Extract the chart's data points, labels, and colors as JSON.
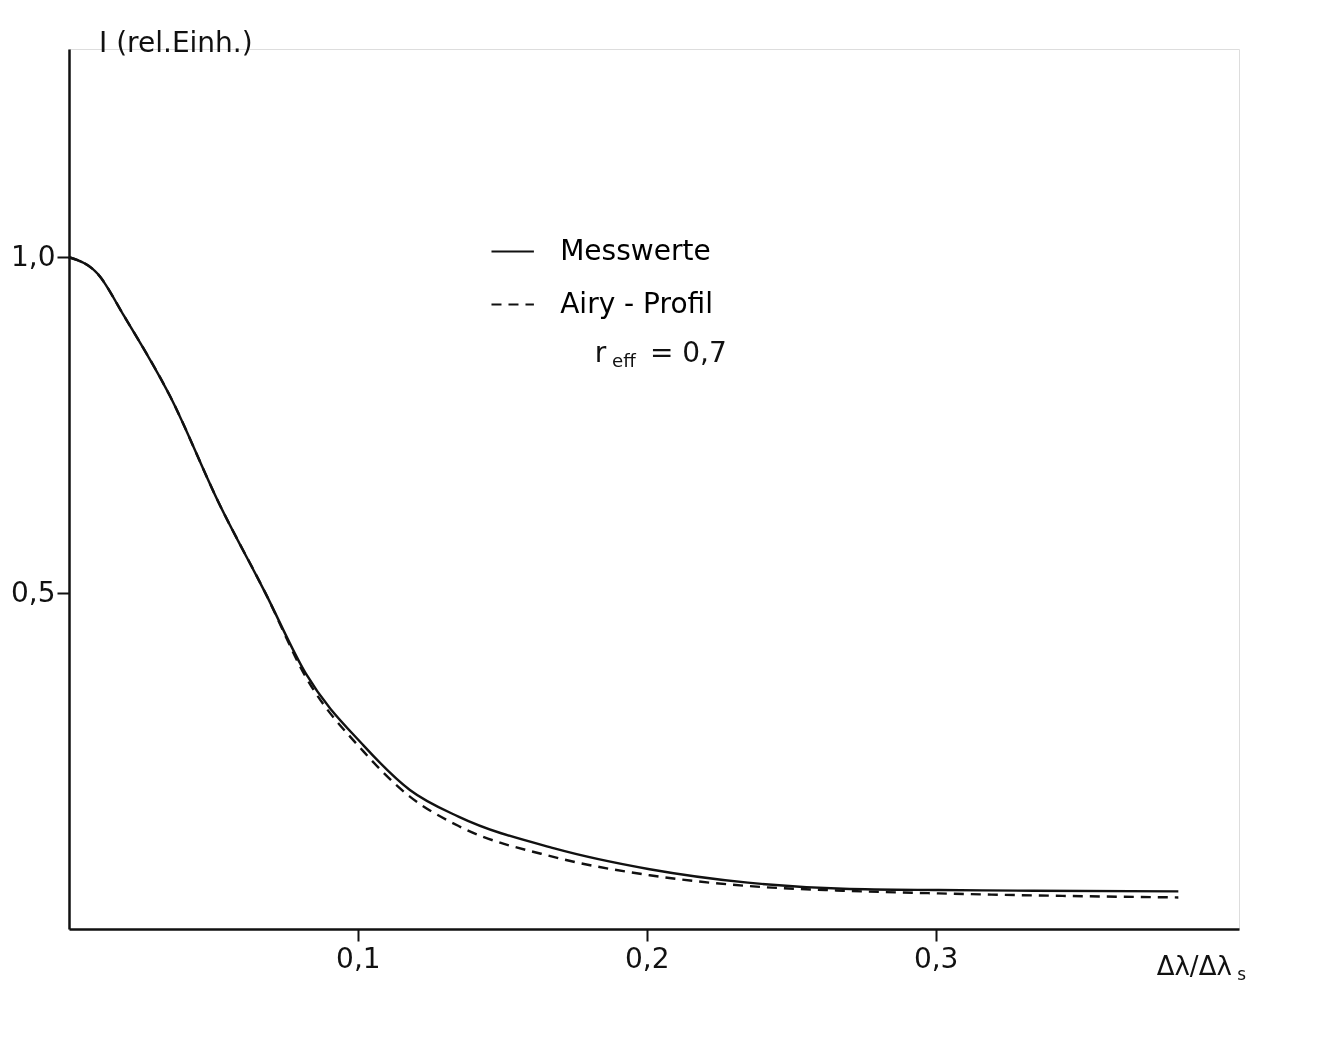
{
  "chart_data": {
    "type": "line",
    "xlabel": "Δλ/Δλ$_{s}$",
    "ylabel": "I (rel.Einh.)",
    "xlim": [
      0,
      0.405
    ],
    "ylim": [
      0,
      1.31
    ],
    "xticks": [
      {
        "value": 0.1,
        "label": "0,1"
      },
      {
        "value": 0.2,
        "label": "0,2"
      },
      {
        "value": 0.3,
        "label": "0,3"
      }
    ],
    "yticks": [
      {
        "value": 0.5,
        "label": "0,5"
      },
      {
        "value": 1.0,
        "label": "1,0"
      }
    ],
    "grid": false,
    "legend": "top",
    "marker": "none",
    "series": [
      {
        "name": "Messwerte",
        "color": "#111111",
        "line_style": "solid",
        "x": [
          0,
          0.01,
          0.019,
          0.035,
          0.052,
          0.068,
          0.082,
          0.102,
          0.118,
          0.135,
          0.168,
          0.201,
          0.235,
          0.268,
          0.301,
          0.334,
          0.384
        ],
        "values": [
          1.0,
          0.975,
          0.913,
          0.793,
          0.633,
          0.5,
          0.38,
          0.273,
          0.207,
          0.167,
          0.12,
          0.089,
          0.069,
          0.06,
          0.058,
          0.057,
          0.056
        ]
      },
      {
        "name": "Airy - Profil",
        "color": "#111111",
        "line_style": "dashed",
        "x": [
          0,
          0.01,
          0.019,
          0.035,
          0.052,
          0.068,
          0.082,
          0.102,
          0.118,
          0.135,
          0.168,
          0.201,
          0.235,
          0.268,
          0.301,
          0.334,
          0.384
        ],
        "values": [
          1.0,
          0.975,
          0.913,
          0.793,
          0.633,
          0.5,
          0.375,
          0.264,
          0.197,
          0.153,
          0.107,
          0.08,
          0.064,
          0.057,
          0.053,
          0.05,
          0.047
        ]
      }
    ],
    "annotations": [
      "r$_{eff}$= 0,7"
    ]
  }
}
